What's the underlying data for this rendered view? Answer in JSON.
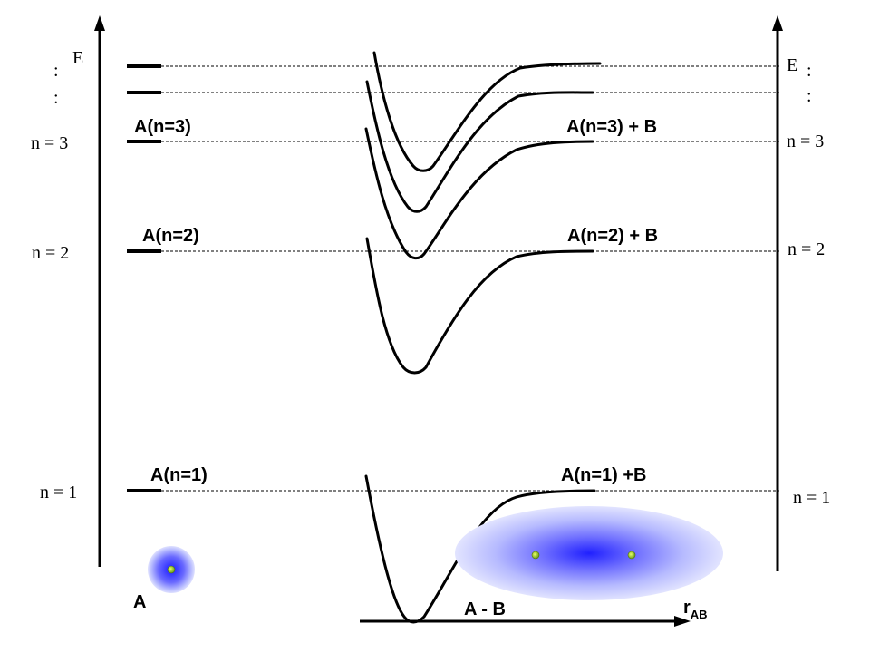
{
  "axes": {
    "left_e": "E",
    "right_e": "E",
    "dots": ":",
    "x_axis_main": "r",
    "x_axis_sub": "AB"
  },
  "levels": {
    "n1": "n = 1",
    "n2": "n = 2",
    "n3": "n = 3"
  },
  "atom_states": {
    "a_n1": "A(n=1)",
    "a_n2": "A(n=2)",
    "a_n3": "A(n=3)"
  },
  "molecule_states": {
    "ab_n1": "A(n=1) +B",
    "ab_n2": "A(n=2) + B",
    "ab_n3": "A(n=3) + B"
  },
  "labels": {
    "atom": "A",
    "molecule": "A - B"
  },
  "colors": {
    "line": "#000000",
    "cloud_center": "#2a2aff",
    "cloud_edge": "#e6e8ff",
    "nucleus": "#9acd32"
  }
}
